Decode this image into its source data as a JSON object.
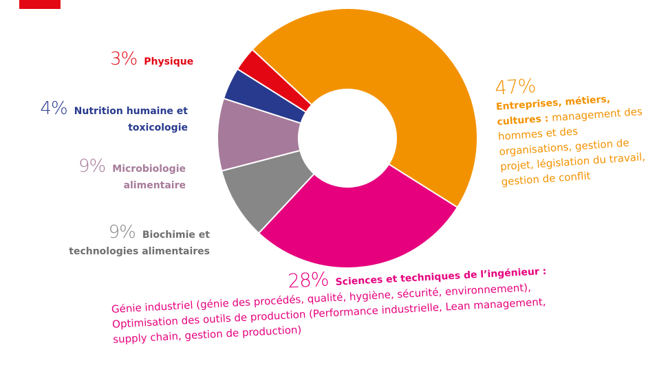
{
  "chart_data": {
    "type": "donut",
    "categories": [
      "Entreprises, métiers, cultures :",
      "Sciences et techniques de l’ingénieur :",
      "Biochimie et technologies alimentaires",
      "Microbiologie alimentaire",
      "Nutrition humaine et toxicologie",
      "Physique"
    ],
    "values": [
      47,
      28,
      9,
      9,
      4,
      3
    ],
    "value_labels": [
      "47%",
      "28%",
      "9%",
      "9%",
      "4%",
      "3%"
    ],
    "descriptions": [
      "management des hommes et des organisations, gestion de projet,  législation du travail, gestion de conflit",
      "Génie industriel (génie des procédés, qualité, hygiène, sécurité, environnement), Optimisation des outils de production (Performance industrielle, Lean management, supply chain, gestion de production)",
      null,
      null,
      null,
      null
    ],
    "colors": [
      "#f39200",
      "#e6007e",
      "#878787",
      "#a67a9a",
      "#283a8e",
      "#e30613"
    ]
  }
}
